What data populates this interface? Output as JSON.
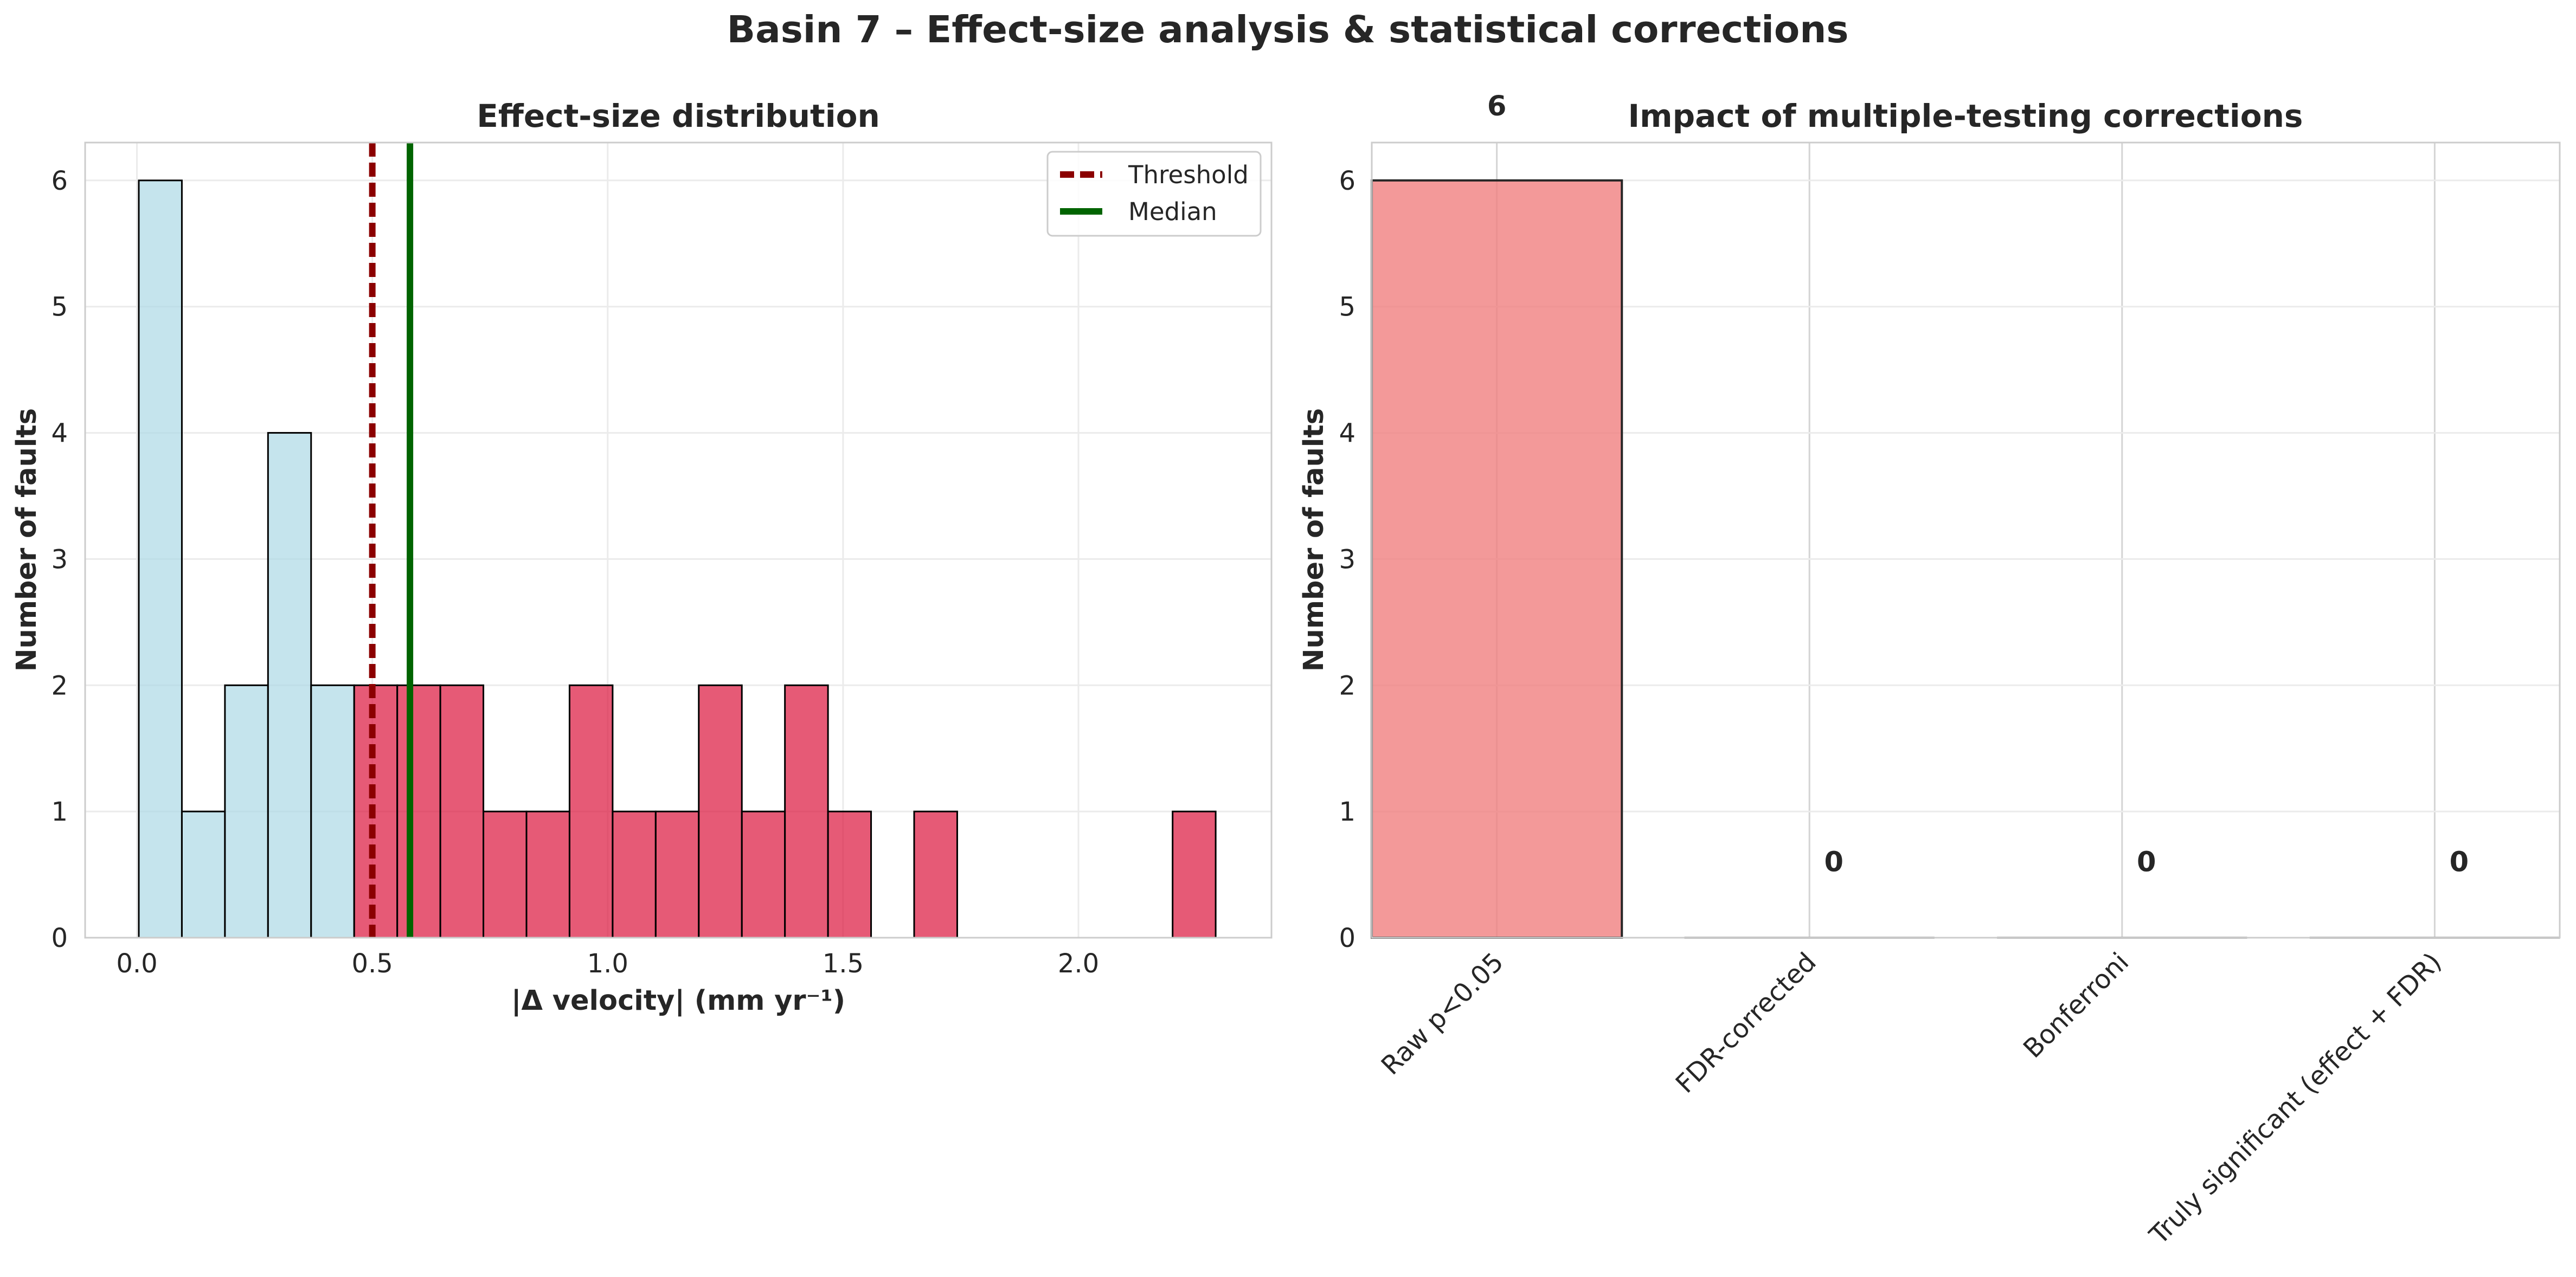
{
  "figure": {
    "suptitle": "Basin 7 – Effect-size analysis & statistical corrections"
  },
  "chart_data": [
    {
      "type": "bar",
      "subtype": "histogram",
      "title": "Effect-size distribution",
      "xlabel": "|Δ velocity| (mm yr⁻¹)",
      "ylabel": "Number of faults",
      "xlim": [
        -0.11,
        2.41
      ],
      "ylim": [
        0,
        6.3
      ],
      "xticks": [
        "0.0",
        "0.5",
        "1.0",
        "1.5",
        "2.0"
      ],
      "yticks": [
        "0",
        "1",
        "2",
        "3",
        "4",
        "5",
        "6"
      ],
      "grid": true,
      "bin_width": 0.0915,
      "bins_start": 0.004,
      "counts": [
        6,
        1,
        2,
        4,
        2,
        2,
        2,
        2,
        1,
        1,
        2,
        1,
        1,
        2,
        1,
        2,
        1,
        0,
        1,
        0,
        0,
        0,
        0,
        0,
        1
      ],
      "colors": {
        "below_threshold": "#add8e6",
        "above_threshold": "#dc143c",
        "edge": "#000000"
      },
      "threshold": 0.5,
      "median": 0.58,
      "legend": {
        "position": "upper right",
        "entries": [
          {
            "label": "Threshold",
            "color": "#8b0000",
            "style": "dashed"
          },
          {
            "label": "Median",
            "color": "#006400",
            "style": "solid"
          }
        ]
      }
    },
    {
      "type": "bar",
      "title": "Impact of multiple-testing corrections",
      "ylabel": "Number of faults",
      "categories": [
        "Raw p<0.05",
        "FDR-corrected",
        "Bonferroni",
        "Truly significant (effect + FDR)"
      ],
      "values": [
        6,
        0,
        0,
        0
      ],
      "value_labels": [
        "6",
        "0",
        "0",
        "0"
      ],
      "yticks": [
        "0",
        "1",
        "2",
        "3",
        "4",
        "5",
        "6"
      ],
      "ylim": [
        0,
        6.3
      ],
      "grid": true,
      "color": "#f08080"
    }
  ]
}
